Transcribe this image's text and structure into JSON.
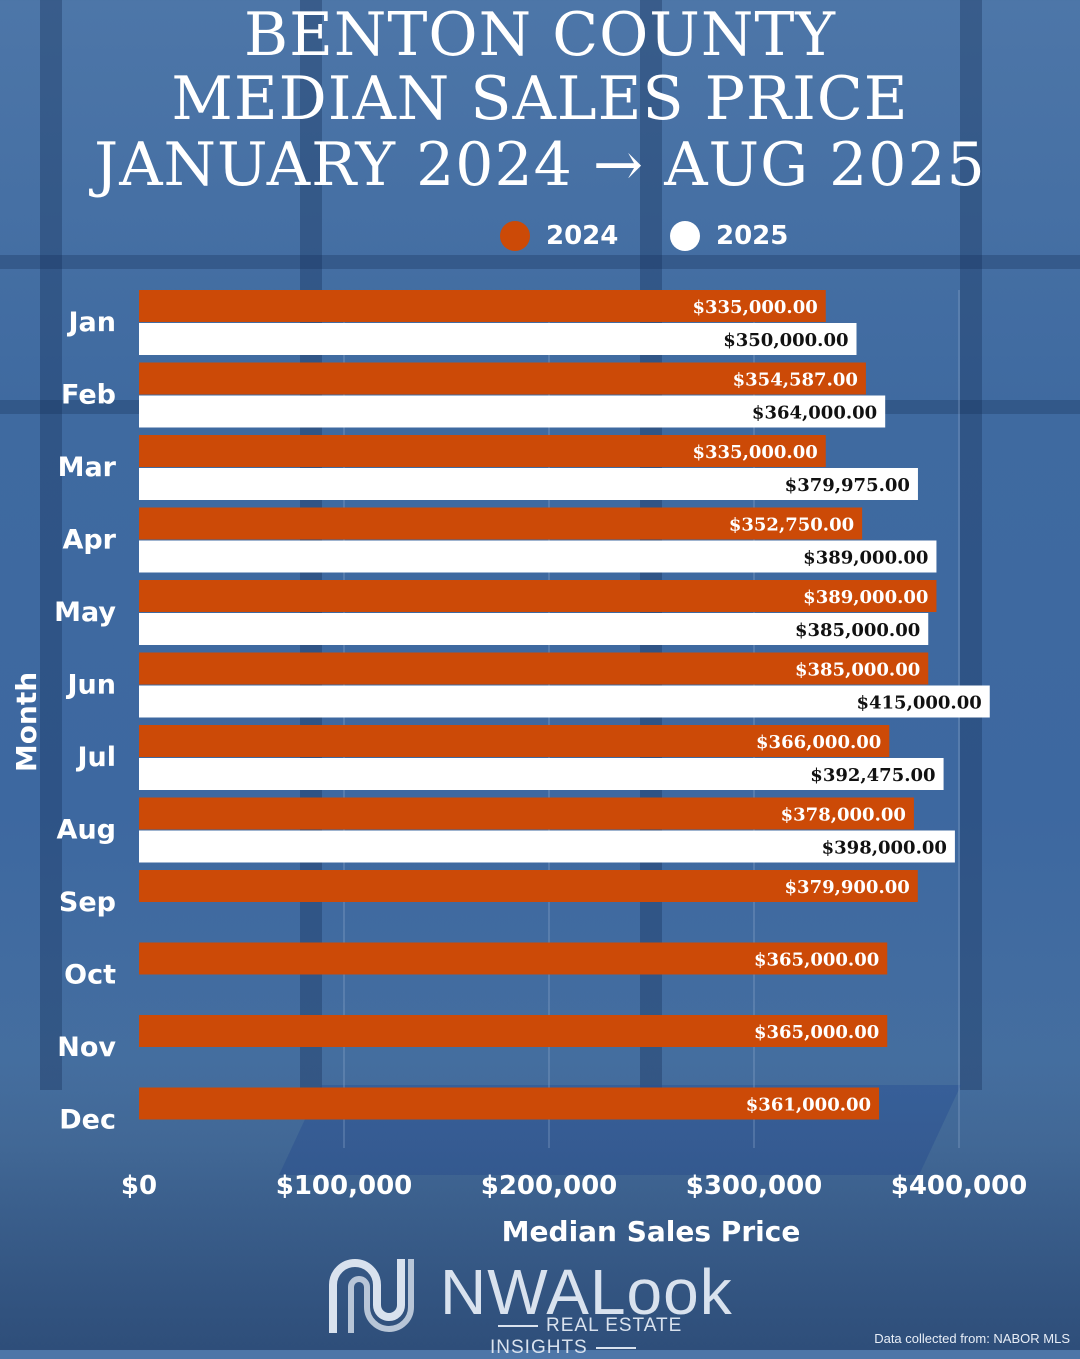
{
  "title_lines": [
    "BENTON COUNTY",
    "MEDIAN SALES PRICE",
    "JANUARY 2024 → AUG 2025"
  ],
  "colors": {
    "series_2024": "#cc4a07",
    "series_2025": "#ffffff",
    "text": "#ffffff",
    "grid": "#8fa9cc"
  },
  "chart_data": {
    "type": "bar",
    "orientation": "horizontal",
    "categories": [
      "Jan",
      "Feb",
      "Mar",
      "Apr",
      "May",
      "Jun",
      "Jul",
      "Aug",
      "Sep",
      "Oct",
      "Nov",
      "Dec"
    ],
    "series": [
      {
        "name": "2024",
        "values": [
          335000,
          354587,
          335000,
          352750,
          389000,
          385000,
          366000,
          378000,
          379900,
          365000,
          365000,
          361000
        ],
        "labels": [
          "$335,000.00",
          "$354,587.00",
          "$335,000.00",
          "$352,750.00",
          "$389,000.00",
          "$385,000.00",
          "$366,000.00",
          "$378,000.00",
          "$379,900.00",
          "$365,000.00",
          "$365,000.00",
          "$361,000.00"
        ]
      },
      {
        "name": "2025",
        "values": [
          350000,
          364000,
          379975,
          389000,
          385000,
          415000,
          392475,
          398000,
          null,
          null,
          null,
          null
        ],
        "labels": [
          "$350,000.00",
          "$364,000.00",
          "$379,975.00",
          "$389,000.00",
          "$385,000.00",
          "$415,000.00",
          "$392,475.00",
          "$398,000.00",
          null,
          null,
          null,
          null
        ]
      }
    ],
    "xlabel": "Median Sales Price",
    "ylabel": "Month",
    "xlim": [
      0,
      420000
    ],
    "xticks": [
      0,
      100000,
      200000,
      300000,
      400000
    ],
    "xtick_labels": [
      "$0",
      "$100,000",
      "$200,000",
      "$300,000",
      "$400,000"
    ],
    "legend_position": "top-center",
    "grid": true
  },
  "logo": {
    "name": "NWALook",
    "tagline": "REAL ESTATE INSIGHTS"
  },
  "footer_note": "Data collected from: NABOR MLS"
}
